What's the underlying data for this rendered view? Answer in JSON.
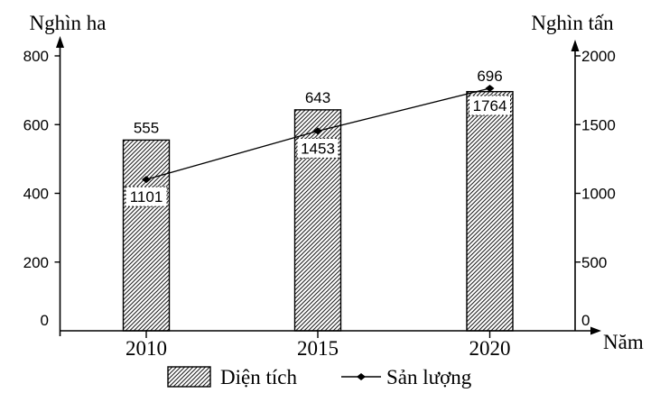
{
  "chart_data": {
    "type": "bar+line-dual-axis",
    "categories": [
      "2010",
      "2015",
      "2020"
    ],
    "series": [
      {
        "name": "Diện tích",
        "type": "bar",
        "axis": "left",
        "unit": "Nghìn ha",
        "values": [
          555,
          643,
          696
        ]
      },
      {
        "name": "Sản lượng",
        "type": "line",
        "axis": "right",
        "unit": "Nghìn tấn",
        "values": [
          1101,
          1453,
          1764
        ]
      }
    ],
    "axes": {
      "left": {
        "title": "Nghìn ha",
        "min": 0,
        "max": 800,
        "tick_step": 200,
        "tick_labels": [
          "0",
          "200",
          "400",
          "600",
          "800"
        ]
      },
      "right": {
        "title": "Nghìn tấn",
        "min": 0,
        "max": 2000,
        "tick_step": 500,
        "tick_labels": [
          "0",
          "500",
          "1000",
          "1500",
          "2000"
        ]
      },
      "x": {
        "title": "Năm"
      }
    },
    "legend": [
      {
        "label": "Diện tích",
        "swatch": "hatched-bar"
      },
      {
        "label": "Sản lượng",
        "swatch": "line-diamond"
      }
    ],
    "layout_hints": {
      "grid": "off",
      "legend_position": "bottom-center",
      "bar_fill": "diagonal-hatch",
      "line_marker": "filled-diamond",
      "value_boxes": "dotted-border-white"
    },
    "colors": {
      "ink": "#000000",
      "background": "#ffffff"
    }
  }
}
